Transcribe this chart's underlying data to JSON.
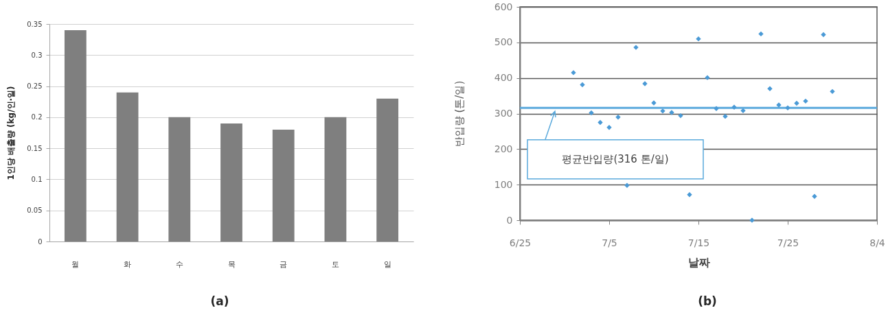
{
  "chart_data": [
    {
      "type": "bar",
      "title": "(a)",
      "ylabel": "1인당 배출량 (kg/인·일)",
      "categories": [
        "월",
        "화",
        "수",
        "목",
        "금",
        "토",
        "일"
      ],
      "values": [
        0.34,
        0.24,
        0.2,
        0.19,
        0.18,
        0.2,
        0.23
      ],
      "color": "#7f7f7f",
      "ylim": [
        0,
        0.35
      ],
      "yticks": [
        0,
        0.05,
        0.1,
        0.15,
        0.2,
        0.25,
        0.3,
        0.35
      ],
      "grid": "y"
    },
    {
      "type": "scatter",
      "title": "(b)",
      "xlabel": "날짜",
      "ylabel": "반입량 (톤/일)",
      "x": [
        "--07-01",
        "--07-02",
        "--07-03",
        "--07-04",
        "--07-05",
        "--07-06",
        "--07-07",
        "--07-08",
        "--07-09",
        "--07-10",
        "--07-11",
        "--07-12",
        "--07-13",
        "--07-14",
        "--07-15",
        "--07-16",
        "--07-17",
        "--07-18",
        "--07-19",
        "--07-20",
        "--07-21",
        "--07-22",
        "--07-23",
        "--07-24",
        "--07-25",
        "--07-26",
        "--07-27",
        "--07-28",
        "--07-29",
        "--07-30"
      ],
      "values": [
        415,
        381,
        302,
        275,
        261,
        290,
        98,
        486,
        384,
        330,
        307,
        303,
        294,
        72,
        510,
        401,
        314,
        292,
        318,
        308,
        0,
        524,
        370,
        324,
        316,
        329,
        335,
        67,
        522,
        362
      ],
      "color": "#4a9ad6",
      "marker": "diamond",
      "xlim": [
        "--06-25",
        "--08-04"
      ],
      "xticks": [
        {
          "value": "--06-25",
          "label": "6/25"
        },
        {
          "value": "--07-05",
          "label": "7/5"
        },
        {
          "value": "--07-15",
          "label": "7/15"
        },
        {
          "value": "--07-25",
          "label": "7/25"
        },
        {
          "value": "--08-04",
          "label": "8/4"
        }
      ],
      "ylim": [
        0,
        600
      ],
      "yticks": [
        0,
        100,
        200,
        300,
        400,
        500,
        600
      ],
      "grid": "y",
      "ref_lines": [
        {
          "axis": "y",
          "value": 316,
          "color": "#5aa9dc"
        }
      ],
      "annotations": [
        "평균반입량(316 톤/일)"
      ]
    }
  ]
}
